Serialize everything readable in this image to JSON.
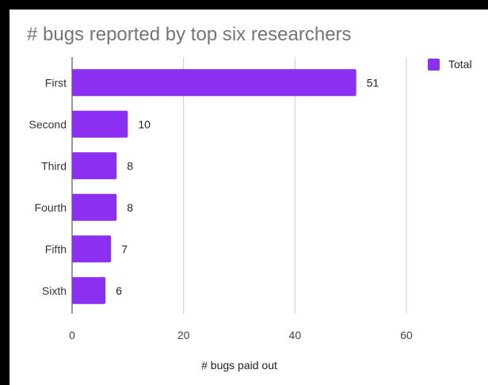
{
  "chart_data": {
    "type": "bar",
    "orientation": "horizontal",
    "title": "# bugs reported by top six researchers",
    "categories": [
      "First",
      "Second",
      "Third",
      "Fourth",
      "Fifth",
      "Sixth"
    ],
    "series": [
      {
        "name": "Total",
        "values": [
          51,
          10,
          8,
          8,
          7,
          6
        ],
        "color": "#8b2ff0"
      }
    ],
    "xlabel": "# bugs paid out",
    "ylabel": "",
    "xlim": [
      0,
      60
    ],
    "xticks": [
      0,
      20,
      40,
      60
    ],
    "grid": true,
    "legend_position": "top-right",
    "data_labels": true
  }
}
